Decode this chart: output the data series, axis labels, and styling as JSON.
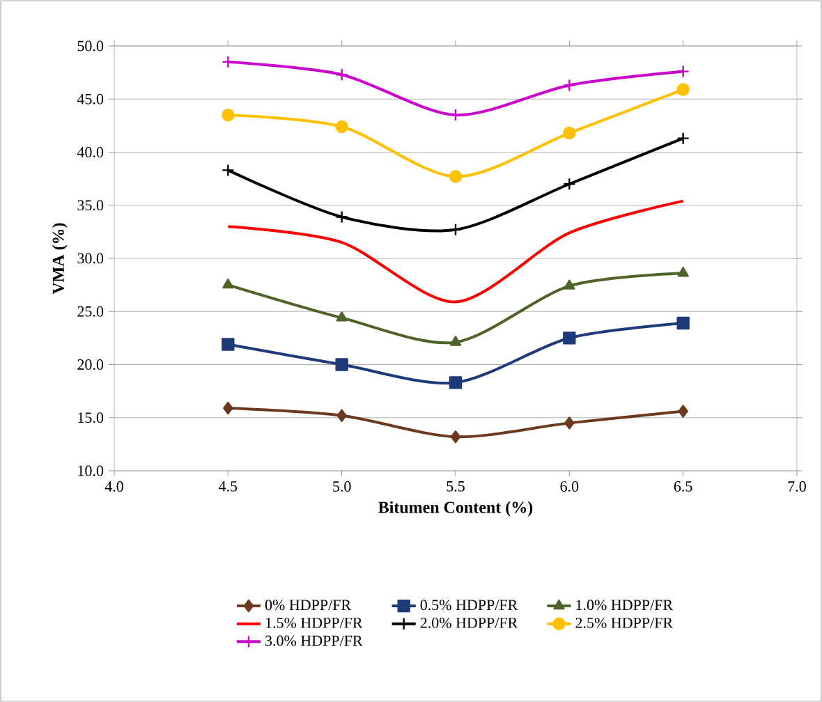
{
  "chart_data": {
    "type": "line",
    "xlabel": "Bitumen Content (%)",
    "ylabel": "VMA (%)",
    "xlim": [
      4,
      7
    ],
    "ylim": [
      10,
      50
    ],
    "xticks": [
      {
        "value": 4,
        "label": "4.0"
      },
      {
        "value": 4.5,
        "label": "4.5"
      },
      {
        "value": 5,
        "label": "5.0"
      },
      {
        "value": 5.5,
        "label": "5.5"
      },
      {
        "value": 6,
        "label": "6.0"
      },
      {
        "value": 6.5,
        "label": "6.5"
      },
      {
        "value": 7,
        "label": "7.0"
      }
    ],
    "yticks": [
      {
        "value": 10,
        "label": "10.0"
      },
      {
        "value": 15,
        "label": "15.0"
      },
      {
        "value": 20,
        "label": "20.0"
      },
      {
        "value": 25,
        "label": "25.0"
      },
      {
        "value": 30,
        "label": "30.0"
      },
      {
        "value": 35,
        "label": "35.0"
      },
      {
        "value": 40,
        "label": "40.0"
      },
      {
        "value": 45,
        "label": "45.0"
      },
      {
        "value": 50,
        "label": "50.0"
      }
    ],
    "x": [
      4.5,
      5,
      5.5,
      6,
      6.5
    ],
    "grid": "y",
    "legend": "bottom",
    "series": [
      {
        "name": "0% HDPP/FR",
        "color": "#6b3a1e",
        "marker": "diamond",
        "values": [
          15.9,
          15.2,
          13.2,
          14.5,
          15.6
        ]
      },
      {
        "name": "0.5% HDPP/FR",
        "color": "#1f3a7a",
        "marker": "square",
        "values": [
          21.9,
          20.0,
          18.3,
          22.5,
          23.9
        ]
      },
      {
        "name": "1.0% HDPP/FR",
        "color": "#4f6228",
        "marker": "triangle",
        "values": [
          27.5,
          24.4,
          22.1,
          27.4,
          28.6
        ]
      },
      {
        "name": "1.5% HDPP/FR",
        "color": "#ff0000",
        "marker": "none",
        "values": [
          33.0,
          31.5,
          25.9,
          32.4,
          35.4
        ]
      },
      {
        "name": "2.0% HDPP/FR",
        "color": "#000000",
        "marker": "cross",
        "values": [
          38.3,
          33.9,
          32.7,
          37.0,
          41.3
        ]
      },
      {
        "name": "2.5% HDPP/FR",
        "color": "#ffc000",
        "marker": "circle",
        "values": [
          43.5,
          42.4,
          37.7,
          41.8,
          45.9
        ]
      },
      {
        "name": "3.0% HDPP/FR",
        "color": "#cc00cc",
        "marker": "cross",
        "values": [
          48.5,
          47.3,
          43.5,
          46.3,
          47.6
        ]
      }
    ]
  }
}
